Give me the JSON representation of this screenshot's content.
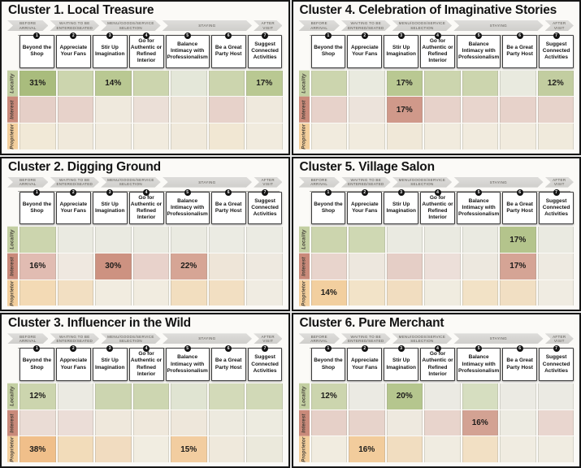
{
  "journey": {
    "phases": [
      {
        "label": "BEFORE ARRIVAL",
        "span": 1
      },
      {
        "label": "WAITING TO BE ENTERED/SEATED",
        "span": 1
      },
      {
        "label": "MENU/GOODS/SERVICE SELECTION",
        "span": 1
      },
      {
        "label": "STAYING",
        "span": 3
      },
      {
        "label": "AFTER VISIT",
        "span": 1
      }
    ],
    "columns": [
      {
        "num": "1",
        "label": "Beyond the Shop"
      },
      {
        "num": "2",
        "label": "Appreciate Your Fans"
      },
      {
        "num": "3",
        "label": "Stir Up Imagination"
      },
      {
        "num": "4",
        "label": "Go for Authentic or Refined Interior"
      },
      {
        "num": "5",
        "label": "Balance Intimacy with Professionalism"
      },
      {
        "num": "6",
        "label": "Be a Great Party Host"
      },
      {
        "num": "7",
        "label": "Suggest Connected Activities"
      }
    ],
    "rows": [
      {
        "label": "Locality",
        "color": "#c3cfa2"
      },
      {
        "label": "Interest",
        "color": "#c98a7a"
      },
      {
        "label": "Proprietor",
        "color": "#f3cf9d"
      }
    ]
  },
  "chart_data": [
    {
      "type": "heatmap",
      "title": "Cluster 1. Local Treasure",
      "rows": [
        "Locality",
        "Interest",
        "Proprietor"
      ],
      "columns": [
        "Beyond the Shop",
        "Appreciate Your Fans",
        "Stir Up Imagination",
        "Go for Authentic or Refined Interior",
        "Balance Intimacy with Professionalism",
        "Be a Great Party Host",
        "Suggest Connected Activities"
      ],
      "cells": [
        [
          {
            "label": "31%",
            "value": 31,
            "color": "#a9bc7d"
          },
          {
            "color": "#ccd5ae"
          },
          {
            "label": "14%",
            "value": 14,
            "color": "#b9c892"
          },
          {
            "color": "#ccd5ae"
          },
          {
            "color": "#e4e7d9"
          },
          {
            "color": "#ccd5ae"
          },
          {
            "label": "17%",
            "value": 17,
            "color": "#b9c892"
          }
        ],
        [
          {
            "color": "#e5cfc7"
          },
          {
            "color": "#e7d2ca"
          },
          {
            "color": "#efe9dd"
          },
          {
            "color": "#ebdfd7"
          },
          {
            "color": "#ede5d9"
          },
          {
            "color": "#e7d2ca"
          },
          {
            "color": "#efe9dd"
          }
        ],
        [
          {
            "color": "#f1e9d7"
          },
          {
            "color": "#f0e9db"
          },
          {
            "color": "#f1ebde"
          },
          {
            "color": "#f1ebde"
          },
          {
            "color": "#f0e9db"
          },
          {
            "color": "#f1e7d3"
          },
          {
            "color": "#f1ebde"
          }
        ]
      ]
    },
    {
      "type": "heatmap",
      "title": "Cluster 4. Celebration of Imaginative Stories",
      "rows": [
        "Locality",
        "Interest",
        "Proprietor"
      ],
      "columns": [
        "Beyond the Shop",
        "Appreciate Your Fans",
        "Stir Up Imagination",
        "Go for Authentic or Refined Interior",
        "Balance Intimacy with Professionalism",
        "Be a Great Party Host",
        "Suggest Connected Activities"
      ],
      "cells": [
        [
          {
            "color": "#ccd5ae"
          },
          {
            "color": "#e9eadf"
          },
          {
            "label": "17%",
            "value": 17,
            "color": "#b9c892"
          },
          {
            "color": "#ccd5ae"
          },
          {
            "color": "#ccd5ae"
          },
          {
            "color": "#e9eadf"
          },
          {
            "label": "12%",
            "value": 12,
            "color": "#c2cda0"
          }
        ],
        [
          {
            "color": "#e7d2ca"
          },
          {
            "color": "#ece3db"
          },
          {
            "label": "17%",
            "value": 17,
            "color": "#d0998a"
          },
          {
            "color": "#e7d2ca"
          },
          {
            "color": "#e8d5cd"
          },
          {
            "color": "#e7d2ca"
          },
          {
            "color": "#e7d3cb"
          }
        ],
        [
          {
            "color": "#f1ebde"
          },
          {
            "color": "#f1ebde"
          },
          {
            "color": "#f0e8d8"
          },
          {
            "color": "#f1ebde"
          },
          {
            "color": "#f1ebde"
          },
          {
            "color": "#f1ebde"
          },
          {
            "color": "#f0eadc"
          }
        ]
      ]
    },
    {
      "type": "heatmap",
      "title": "Cluster 2. Digging Ground",
      "rows": [
        "Locality",
        "Interest",
        "Proprietor"
      ],
      "columns": [
        "Beyond the Shop",
        "Appreciate Your Fans",
        "Stir Up Imagination",
        "Go for Authentic or Refined Interior",
        "Balance Intimacy with Professionalism",
        "Be a Great Party Host",
        "Suggest Connected Activities"
      ],
      "cells": [
        [
          {
            "color": "#ccd5ae"
          },
          {
            "color": "#eaeae1"
          },
          {
            "color": "#eaeae1"
          },
          {
            "color": "#eaeae1"
          },
          {
            "color": "#eaeae1"
          },
          {
            "color": "#ebebe3"
          },
          {
            "color": "#ebebe3"
          }
        ],
        [
          {
            "label": "16%",
            "value": 16,
            "color": "#e1bcb2"
          },
          {
            "color": "#efe8e0"
          },
          {
            "label": "30%",
            "value": 30,
            "color": "#cd9281"
          },
          {
            "color": "#e8d2cb"
          },
          {
            "label": "22%",
            "value": 22,
            "color": "#d6a595"
          },
          {
            "color": "#eee5d8"
          },
          {
            "color": "#eee9e0"
          }
        ],
        [
          {
            "color": "#f3dab5"
          },
          {
            "color": "#f2dfc2"
          },
          {
            "color": "#f1ece0"
          },
          {
            "color": "#f1ece0"
          },
          {
            "color": "#f2debf"
          },
          {
            "color": "#f2dfc2"
          },
          {
            "color": "#f0ece2"
          }
        ]
      ]
    },
    {
      "type": "heatmap",
      "title": "Cluster 5. Village Salon",
      "rows": [
        "Locality",
        "Interest",
        "Proprietor"
      ],
      "columns": [
        "Beyond the Shop",
        "Appreciate Your Fans",
        "Stir Up Imagination",
        "Go for Authentic or Refined Interior",
        "Balance Intimacy with Professionalism",
        "Be a Great Party Host",
        "Suggest Connected Activities"
      ],
      "cells": [
        [
          {
            "color": "#ccd5ae"
          },
          {
            "color": "#cfd8b3"
          },
          {
            "color": "#eaeae1"
          },
          {
            "color": "#eaeae1"
          },
          {
            "color": "#eaeae1"
          },
          {
            "label": "17%",
            "value": 17,
            "color": "#b4c48c"
          },
          {
            "color": "#eaeae1"
          }
        ],
        [
          {
            "color": "#e8d4cc"
          },
          {
            "color": "#ede7de"
          },
          {
            "color": "#e5cec6"
          },
          {
            "color": "#ecdfd9"
          },
          {
            "color": "#ede8df"
          },
          {
            "label": "17%",
            "value": 17,
            "color": "#d5a495"
          },
          {
            "color": "#eeeae1"
          }
        ],
        [
          {
            "label": "14%",
            "value": 14,
            "color": "#f2cf9f"
          },
          {
            "color": "#f2e3c8"
          },
          {
            "color": "#f1ddc0"
          },
          {
            "color": "#f0ece0"
          },
          {
            "color": "#f2e2c6"
          },
          {
            "color": "#f1dfc3"
          },
          {
            "color": "#f0ece2"
          }
        ]
      ]
    },
    {
      "type": "heatmap",
      "title": "Cluster 3. Influencer in the Wild",
      "rows": [
        "Locality",
        "Interest",
        "Proprietor"
      ],
      "columns": [
        "Beyond the Shop",
        "Appreciate Your Fans",
        "Stir Up Imagination",
        "Go for Authentic or Refined Interior",
        "Balance Intimacy with Professionalism",
        "Be a Great Party Host",
        "Suggest Connected Activities"
      ],
      "cells": [
        [
          {
            "label": "12%",
            "value": 12,
            "color": "#ccd5ae"
          },
          {
            "color": "#ebeae2"
          },
          {
            "color": "#ccd5b0"
          },
          {
            "color": "#cdd6b1"
          },
          {
            "color": "#e0e4d2"
          },
          {
            "color": "#d3dab9"
          },
          {
            "color": "#d1d9b7"
          }
        ],
        [
          {
            "color": "#eadcd5"
          },
          {
            "color": "#ebddd7"
          },
          {
            "color": "#efe8dc"
          },
          {
            "color": "#efe8dc"
          },
          {
            "color": "#eee7db"
          },
          {
            "color": "#edeadf"
          },
          {
            "color": "#edebe0"
          }
        ],
        [
          {
            "label": "38%",
            "value": 38,
            "color": "#f0bf8a"
          },
          {
            "color": "#f2dcba"
          },
          {
            "color": "#f1dcc0"
          },
          {
            "color": "#f1ede1"
          },
          {
            "label": "15%",
            "value": 15,
            "color": "#f2cda0"
          },
          {
            "color": "#efe9dc"
          },
          {
            "color": "#ebe9dc"
          }
        ]
      ]
    },
    {
      "type": "heatmap",
      "title": "Cluster 6. Pure Merchant",
      "rows": [
        "Locality",
        "Interest",
        "Proprietor"
      ],
      "columns": [
        "Beyond the Shop",
        "Appreciate Your Fans",
        "Stir Up Imagination",
        "Go for Authentic or Refined Interior",
        "Balance Intimacy with Professionalism",
        "Be a Great Party Host",
        "Suggest Connected Activities"
      ],
      "cells": [
        [
          {
            "label": "12%",
            "value": 12,
            "color": "#ccd5ae"
          },
          {
            "color": "#ebeae3"
          },
          {
            "label": "20%",
            "value": 20,
            "color": "#b5c68e"
          },
          {
            "color": "#ebeae3"
          },
          {
            "color": "#d6dec0"
          },
          {
            "color": "#ebeae3"
          },
          {
            "color": "#ebeae3"
          }
        ],
        [
          {
            "color": "#e6d0c8"
          },
          {
            "color": "#e7d3cb"
          },
          {
            "color": "#eee9df"
          },
          {
            "color": "#e8d4cc"
          },
          {
            "label": "16%",
            "value": 16,
            "color": "#d3a293"
          },
          {
            "color": "#edebe2"
          },
          {
            "color": "#e9d6cf"
          }
        ],
        [
          {
            "color": "#f1ece0"
          },
          {
            "label": "16%",
            "value": 16,
            "color": "#f2cc9c"
          },
          {
            "color": "#f1ddc0"
          },
          {
            "color": "#f0ece1"
          },
          {
            "color": "#f2e0c4"
          },
          {
            "color": "#f0ece1"
          },
          {
            "color": "#f0ece1"
          }
        ]
      ]
    }
  ]
}
